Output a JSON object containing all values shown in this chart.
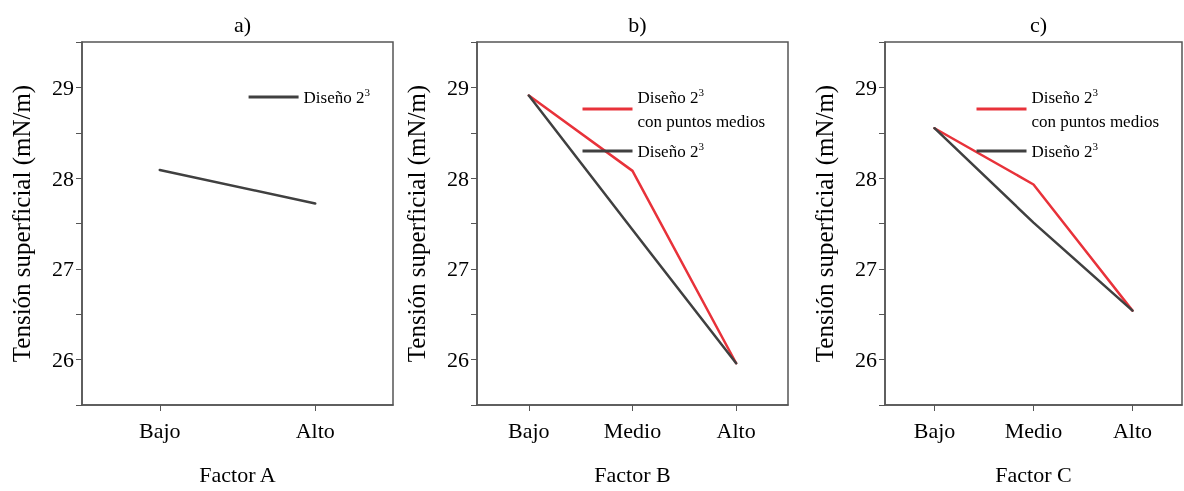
{
  "chart_data": [
    {
      "type": "line",
      "title": "a)",
      "xlabel": "Factor A",
      "ylabel": "Tensión superficial (mN/m)",
      "categories": [
        "Bajo",
        "Alto"
      ],
      "series": [
        {
          "name": "Diseño 2$^{3}$",
          "color": "#404040",
          "values": [
            28.09,
            27.72
          ]
        }
      ],
      "ylim": [
        25.5,
        29.5
      ],
      "yticks": [
        {
          "value": 25.5,
          "label": null
        },
        26,
        {
          "value": 26.5,
          "label": null
        },
        27,
        {
          "value": 27.5,
          "label": null
        },
        28,
        {
          "value": 28.5,
          "label": null
        },
        29,
        {
          "value": 29.5,
          "label": null
        }
      ],
      "legend": "top right",
      "marker": "none"
    },
    {
      "type": "line",
      "title": "b)",
      "xlabel": "Factor B",
      "ylabel": "Tensión superficial (mN/m)",
      "categories": [
        "Bajo",
        "Medio",
        "Alto"
      ],
      "series": [
        {
          "name": "Diseño 2$^{3}$ con puntos medios",
          "color": "#e8323a",
          "values": [
            28.91,
            28.08,
            25.96
          ]
        },
        {
          "name": "Diseño 2$^{3}$",
          "color": "#404040",
          "values": [
            28.91,
            27.43,
            25.96
          ]
        }
      ],
      "ylim": [
        25.5,
        29.5
      ],
      "yticks": [
        {
          "value": 25.5,
          "label": null
        },
        26,
        {
          "value": 26.5,
          "label": null
        },
        27,
        {
          "value": 27.5,
          "label": null
        },
        28,
        {
          "value": 28.5,
          "label": null
        },
        29,
        {
          "value": 29.5,
          "label": null
        }
      ],
      "legend": "top right",
      "marker": "none"
    },
    {
      "type": "line",
      "title": "c)",
      "xlabel": "Factor C",
      "ylabel": "Tensión superficial (mN/m)",
      "categories": [
        "Bajo",
        "Medio",
        "Alto"
      ],
      "series": [
        {
          "name": "Diseño 2$^{3}$ con puntos medios",
          "color": "#e8323a",
          "values": [
            28.55,
            27.93,
            26.54
          ]
        },
        {
          "name": "Diseño 2$^{3}$",
          "color": "#404040",
          "values": [
            28.55,
            27.51,
            26.54
          ]
        }
      ],
      "ylim": [
        25.5,
        29.5
      ],
      "yticks": [
        {
          "value": 25.5,
          "label": null
        },
        26,
        {
          "value": 26.5,
          "label": null
        },
        27,
        {
          "value": 27.5,
          "label": null
        },
        28,
        {
          "value": 28.5,
          "label": null
        },
        29,
        {
          "value": 29.5,
          "label": null
        }
      ],
      "legend": "top right",
      "marker": "none"
    }
  ]
}
